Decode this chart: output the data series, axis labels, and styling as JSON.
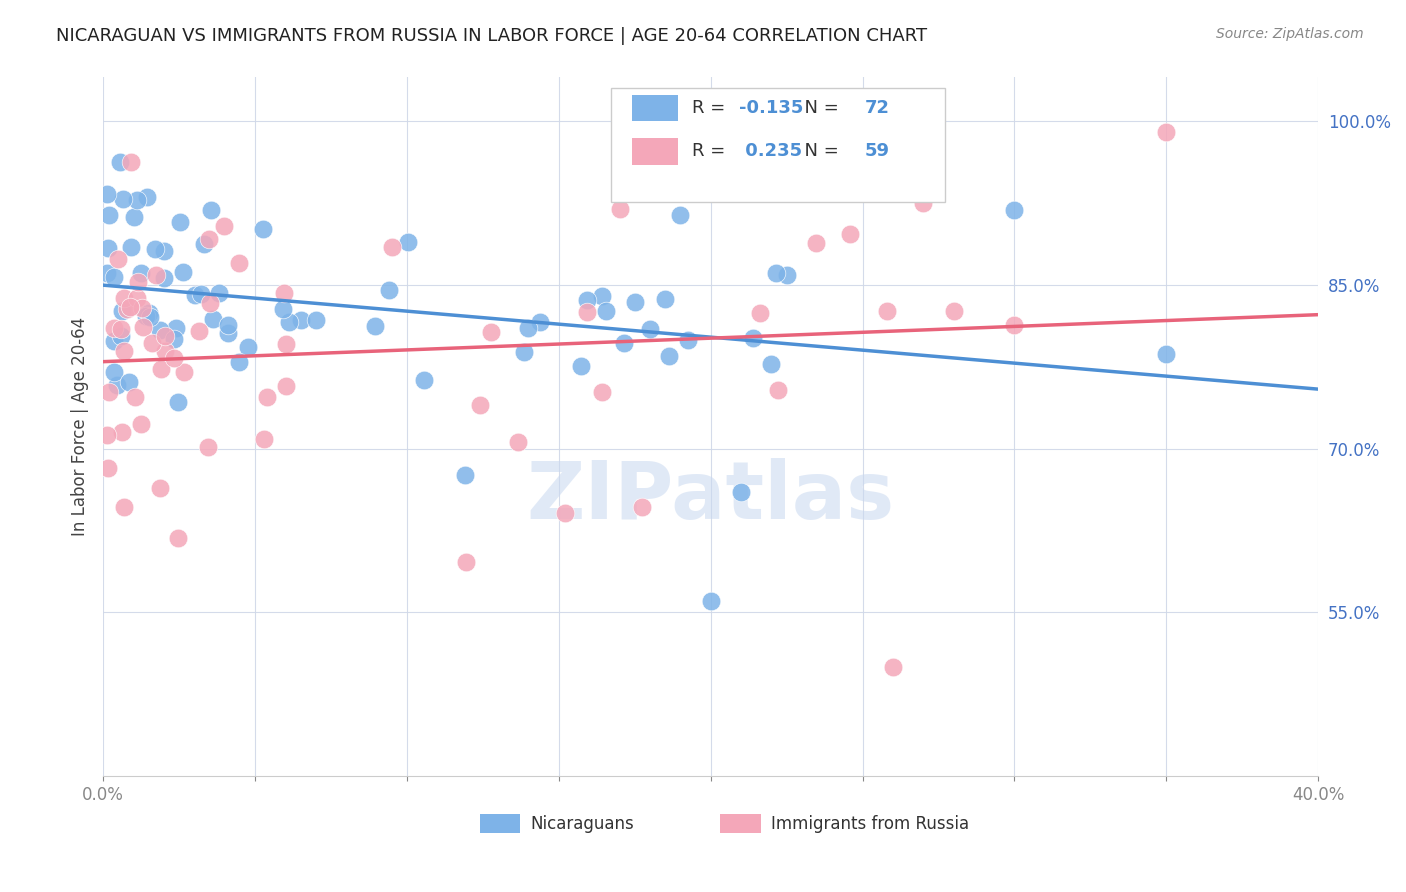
{
  "title": "NICARAGUAN VS IMMIGRANTS FROM RUSSIA IN LABOR FORCE | AGE 20-64 CORRELATION CHART",
  "source": "Source: ZipAtlas.com",
  "ylabel": "In Labor Force | Age 20-64",
  "xlim": [
    0.0,
    0.4
  ],
  "ylim": [
    0.4,
    1.04
  ],
  "yticks": [
    0.55,
    0.7,
    0.85,
    1.0
  ],
  "ytick_labels": [
    "55.0%",
    "70.0%",
    "85.0%",
    "100.0%"
  ],
  "xtick_positions": [
    0.0,
    0.05,
    0.1,
    0.15,
    0.2,
    0.25,
    0.3,
    0.35,
    0.4
  ],
  "xtick_labels": [
    "0.0%",
    "",
    "",
    "",
    "",
    "",
    "",
    "",
    "40.0%"
  ],
  "blue_R": -0.135,
  "blue_N": 72,
  "pink_R": 0.235,
  "pink_N": 59,
  "blue_color": "#7eb3e8",
  "pink_color": "#f4a7b9",
  "blue_line_color": "#4d8fd4",
  "pink_line_color": "#e8637a",
  "watermark": "ZIPatlas",
  "watermark_color": "#c8d8f0",
  "background_color": "#ffffff",
  "grid_color": "#d0d8e8",
  "title_fontsize": 13,
  "axis_label_color": "#4472c4"
}
